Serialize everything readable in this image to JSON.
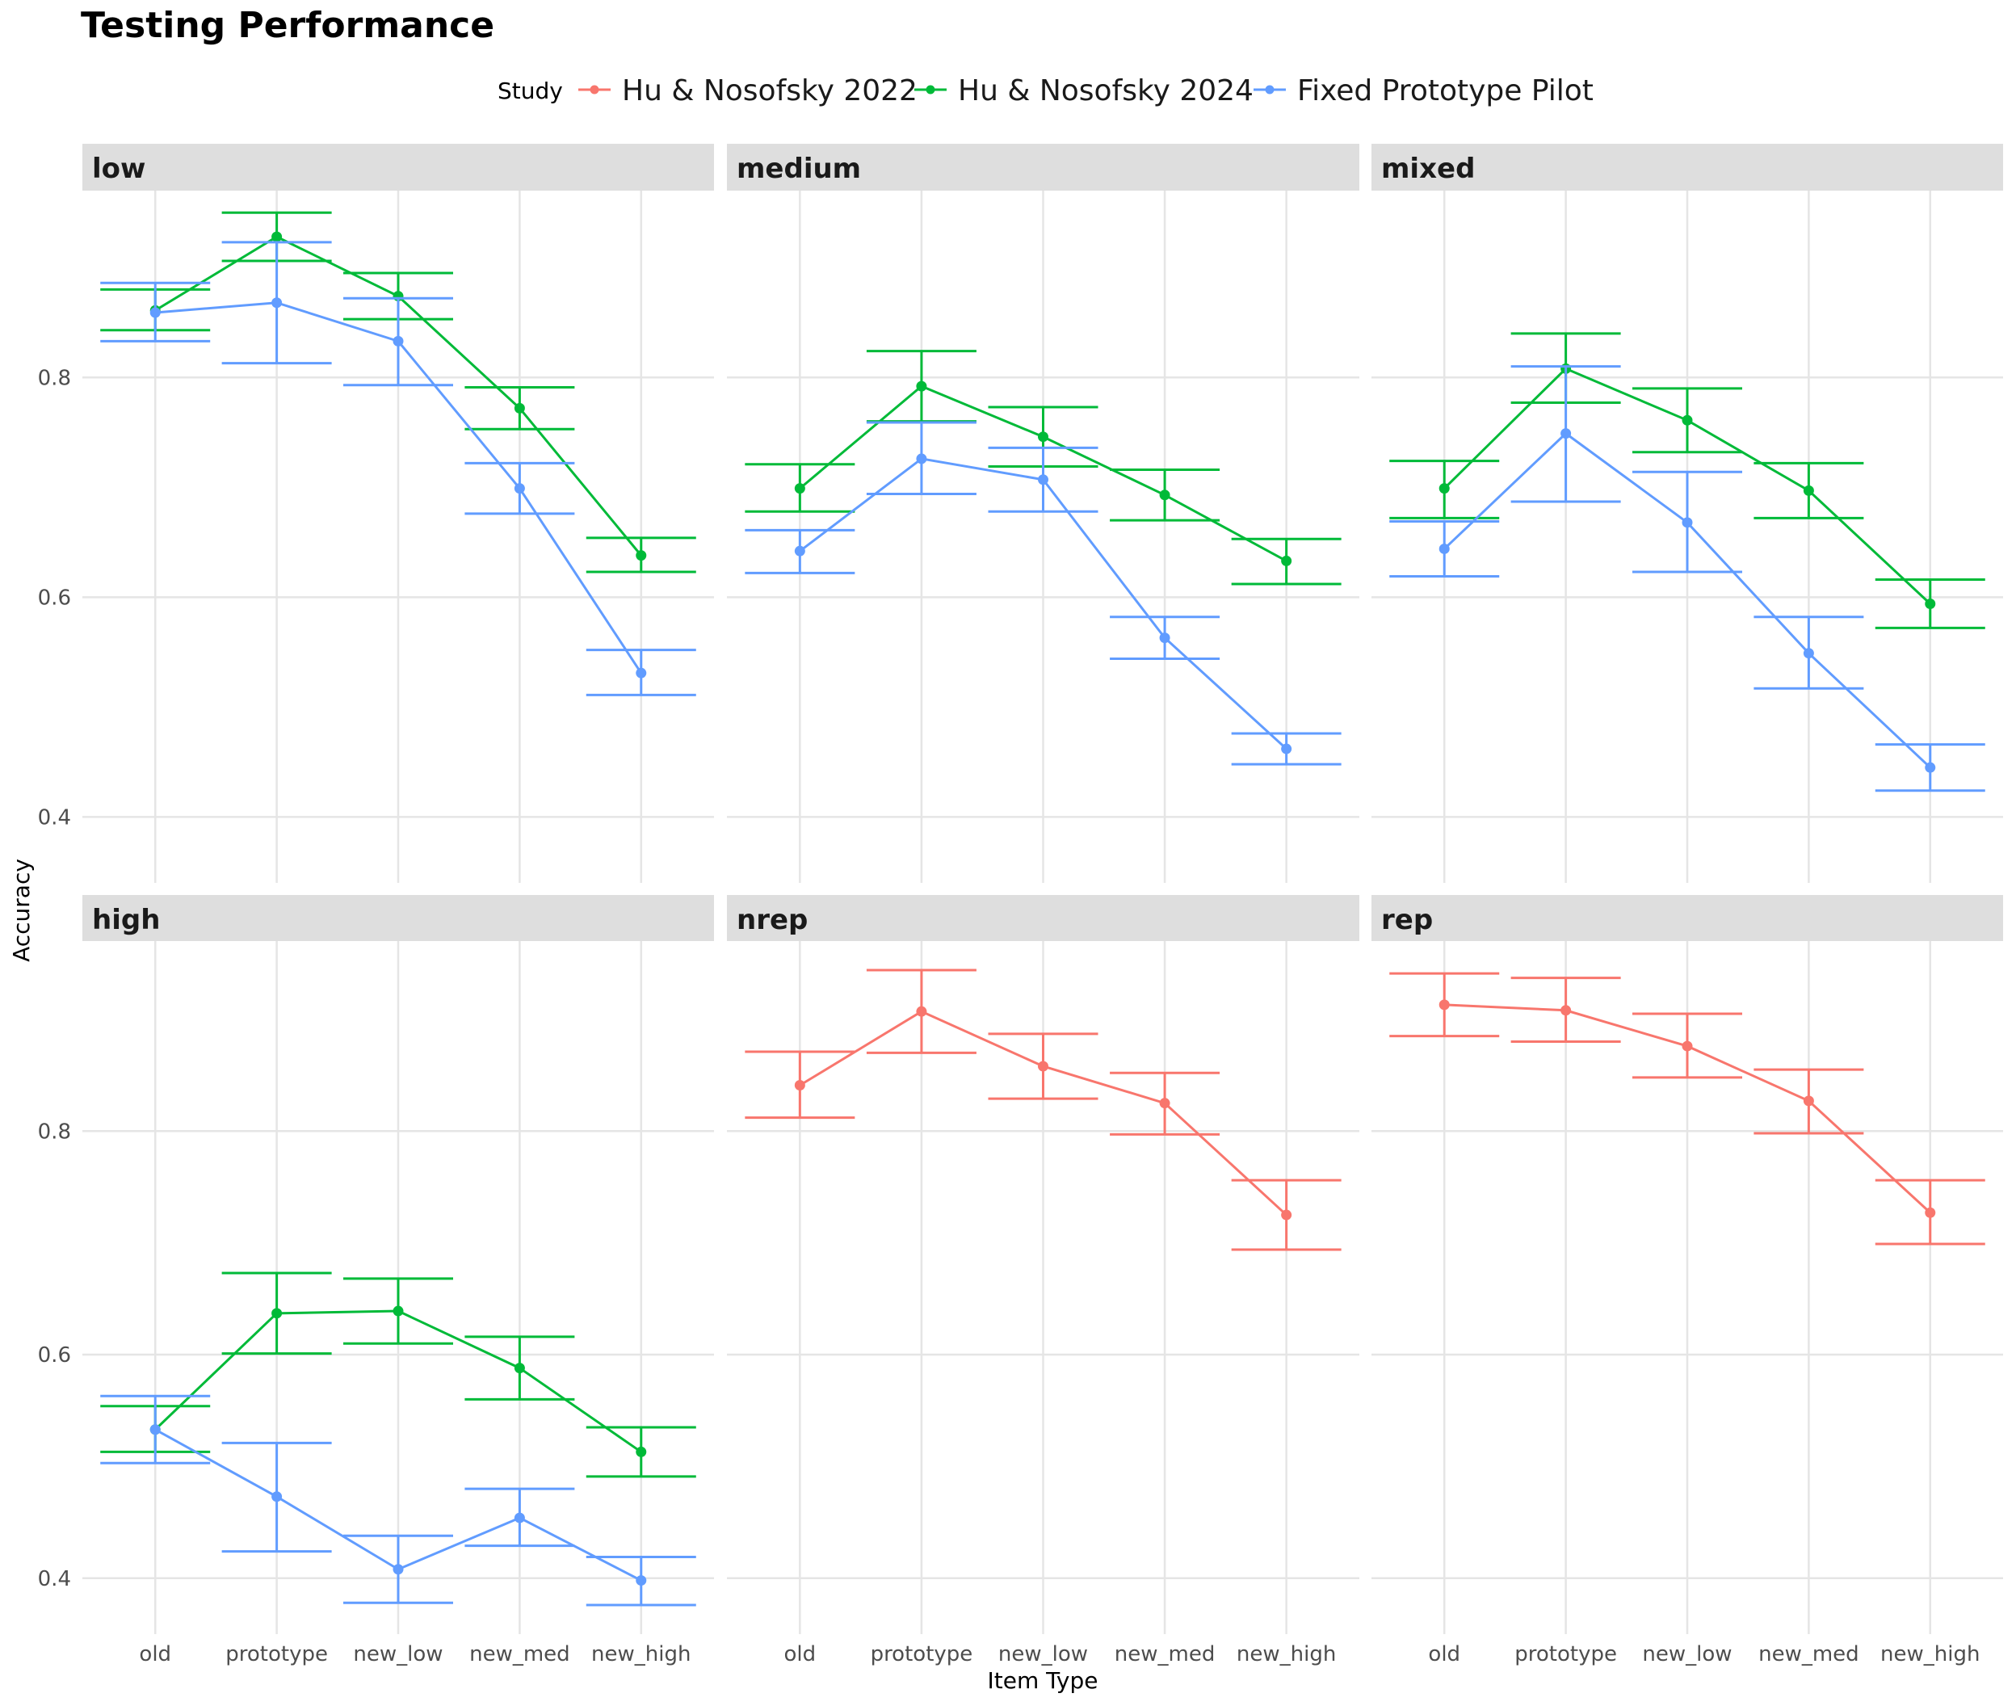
{
  "chart_data": {
    "type": "line",
    "title": "Testing Performance",
    "xlabel": "Item Type",
    "ylabel": "Accuracy",
    "categories": [
      "old",
      "prototype",
      "new_low",
      "new_med",
      "new_high"
    ],
    "y_ticks": [
      "0.4",
      "0.6",
      "0.8"
    ],
    "legend": {
      "title": "Study",
      "placement": "top",
      "entries": [
        {
          "name": "Hu & Nosofsky 2022",
          "color": "#F8766D"
        },
        {
          "name": "Hu & Nosofsky 2024",
          "color": "#00BA38"
        },
        {
          "name": "Fixed Prototype Pilot",
          "color": "#619CFF"
        }
      ]
    },
    "facet_rows": [
      {
        "ylim": [
          0.34,
          0.97
        ]
      },
      {
        "ylim": [
          0.35,
          0.97
        ]
      }
    ],
    "panels": [
      {
        "label": "low",
        "row": 0,
        "col": 0,
        "series": [
          {
            "study": 1,
            "values": [
              0.861,
              0.928,
              0.874,
              0.772,
              0.638
            ],
            "lower": [
              0.843,
              0.906,
              0.853,
              0.753,
              0.623
            ],
            "upper": [
              0.88,
              0.95,
              0.895,
              0.791,
              0.654
            ]
          },
          {
            "study": 2,
            "values": [
              0.859,
              0.868,
              0.833,
              0.699,
              0.531
            ],
            "lower": [
              0.833,
              0.813,
              0.793,
              0.676,
              0.511
            ],
            "upper": [
              0.886,
              0.923,
              0.872,
              0.722,
              0.552
            ]
          }
        ]
      },
      {
        "label": "medium",
        "row": 0,
        "col": 1,
        "series": [
          {
            "study": 1,
            "values": [
              0.699,
              0.792,
              0.746,
              0.693,
              0.633
            ],
            "lower": [
              0.678,
              0.76,
              0.719,
              0.67,
              0.612
            ],
            "upper": [
              0.721,
              0.824,
              0.773,
              0.716,
              0.653
            ]
          },
          {
            "study": 2,
            "values": [
              0.642,
              0.726,
              0.707,
              0.563,
              0.462
            ],
            "lower": [
              0.622,
              0.694,
              0.678,
              0.544,
              0.448
            ],
            "upper": [
              0.661,
              0.759,
              0.736,
              0.582,
              0.476
            ]
          }
        ]
      },
      {
        "label": "mixed",
        "row": 0,
        "col": 2,
        "series": [
          {
            "study": 1,
            "values": [
              0.699,
              0.808,
              0.761,
              0.697,
              0.594
            ],
            "lower": [
              0.672,
              0.777,
              0.732,
              0.672,
              0.572
            ],
            "upper": [
              0.724,
              0.84,
              0.79,
              0.722,
              0.616
            ]
          },
          {
            "study": 2,
            "values": [
              0.644,
              0.749,
              0.668,
              0.549,
              0.445
            ],
            "lower": [
              0.619,
              0.687,
              0.623,
              0.517,
              0.424
            ],
            "upper": [
              0.669,
              0.81,
              0.714,
              0.582,
              0.466
            ]
          }
        ]
      },
      {
        "label": "high",
        "row": 1,
        "col": 0,
        "series": [
          {
            "study": 1,
            "values": [
              0.533,
              0.637,
              0.639,
              0.588,
              0.513
            ],
            "lower": [
              0.513,
              0.601,
              0.61,
              0.56,
              0.491
            ],
            "upper": [
              0.554,
              0.673,
              0.668,
              0.616,
              0.535
            ]
          },
          {
            "study": 2,
            "values": [
              0.533,
              0.473,
              0.408,
              0.454,
              0.398
            ],
            "lower": [
              0.503,
              0.424,
              0.378,
              0.429,
              0.376
            ],
            "upper": [
              0.563,
              0.521,
              0.438,
              0.48,
              0.419
            ]
          }
        ]
      },
      {
        "label": "nrep",
        "row": 1,
        "col": 1,
        "series": [
          {
            "study": 0,
            "values": [
              0.841,
              0.907,
              0.858,
              0.825,
              0.725
            ],
            "lower": [
              0.812,
              0.87,
              0.829,
              0.797,
              0.694
            ],
            "upper": [
              0.871,
              0.944,
              0.887,
              0.852,
              0.756
            ]
          }
        ]
      },
      {
        "label": "rep",
        "row": 1,
        "col": 2,
        "series": [
          {
            "study": 0,
            "values": [
              0.913,
              0.908,
              0.876,
              0.827,
              0.727
            ],
            "lower": [
              0.885,
              0.88,
              0.848,
              0.798,
              0.699
            ],
            "upper": [
              0.941,
              0.937,
              0.905,
              0.855,
              0.756
            ]
          }
        ]
      }
    ]
  }
}
